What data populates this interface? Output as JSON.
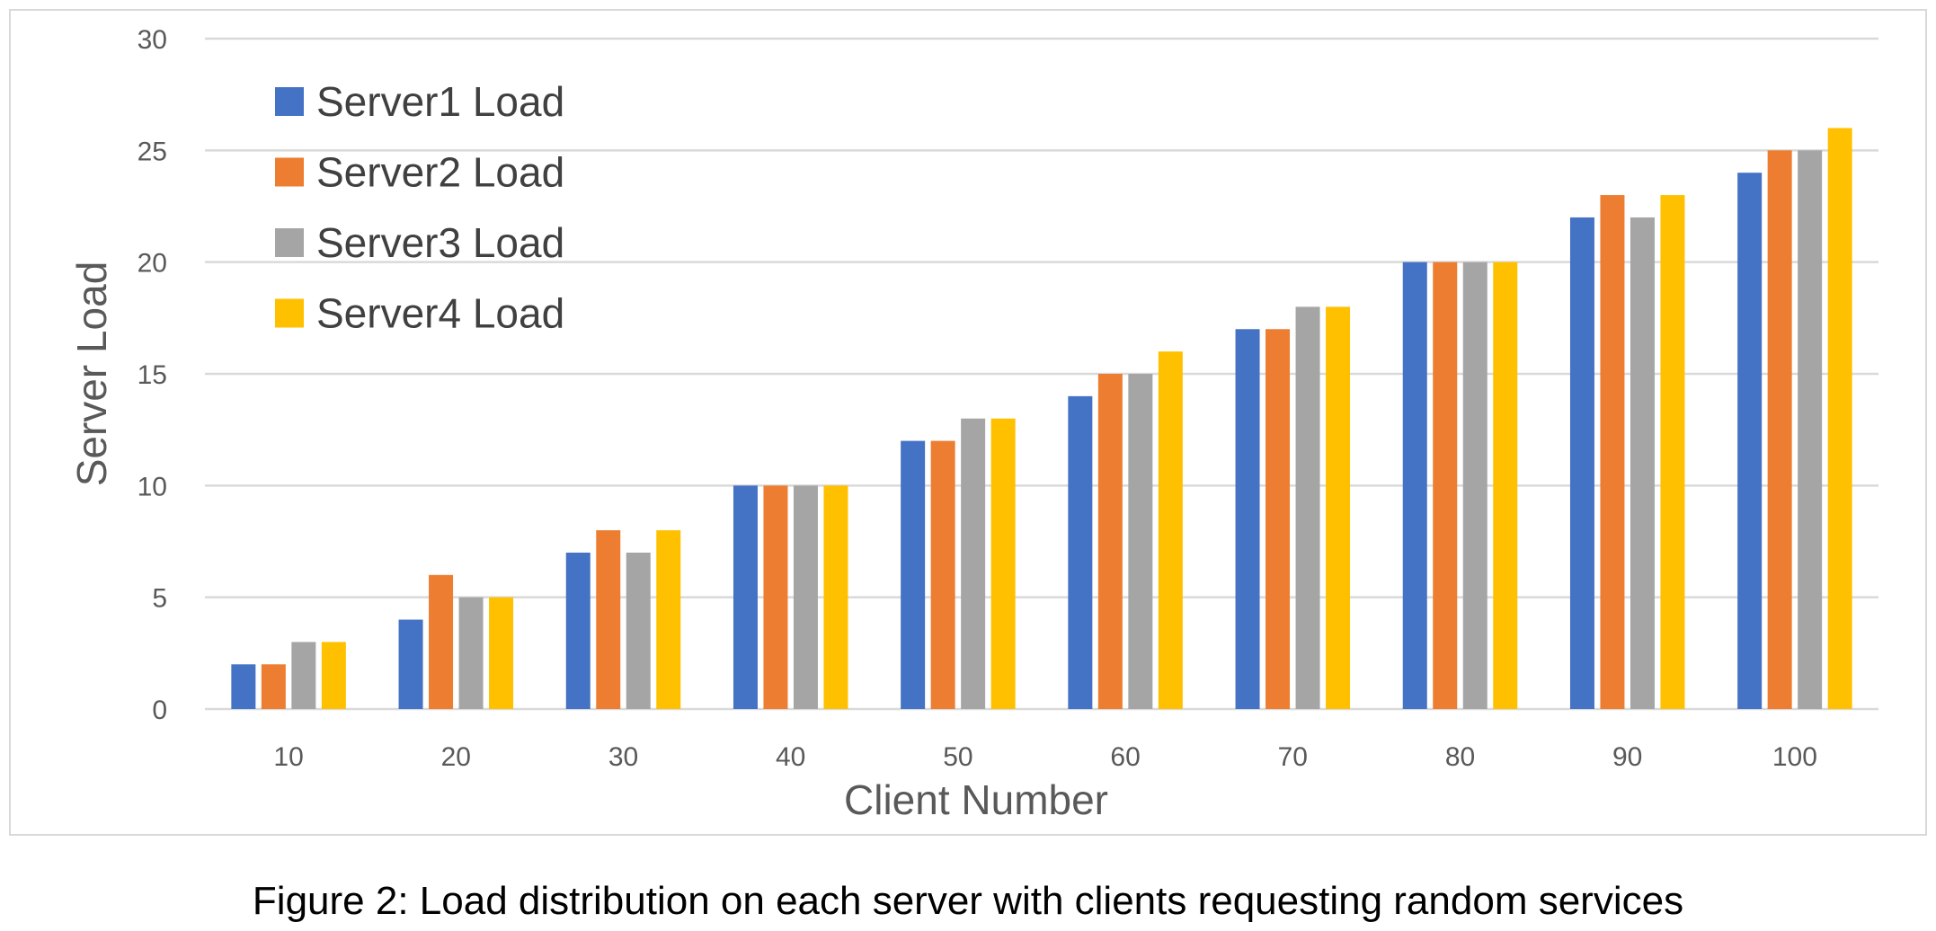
{
  "chart_data": {
    "type": "bar",
    "xlabel": "Client Number",
    "ylabel": "Server Load",
    "categories": [
      "10",
      "20",
      "30",
      "40",
      "50",
      "60",
      "70",
      "80",
      "90",
      "100"
    ],
    "ylim": [
      0,
      30
    ],
    "yticks": [
      0,
      5,
      10,
      15,
      20,
      25,
      30
    ],
    "grid": true,
    "legend_position": "top-left",
    "series": [
      {
        "name": "Server1 Load",
        "color": "#4472C4",
        "values": [
          2,
          4,
          7,
          10,
          12,
          14,
          17,
          20,
          22,
          24
        ]
      },
      {
        "name": "Server2 Load",
        "color": "#ED7D31",
        "values": [
          2,
          6,
          8,
          10,
          12,
          15,
          17,
          20,
          23,
          25
        ]
      },
      {
        "name": "Server3 Load",
        "color": "#A5A5A5",
        "values": [
          3,
          5,
          7,
          10,
          13,
          15,
          18,
          20,
          22,
          25
        ]
      },
      {
        "name": "Server4 Load",
        "color": "#FFC000",
        "values": [
          3,
          5,
          8,
          10,
          13,
          16,
          18,
          20,
          23,
          26
        ]
      }
    ]
  },
  "caption": "Figure 2: Load distribution on each server with clients requesting random services"
}
